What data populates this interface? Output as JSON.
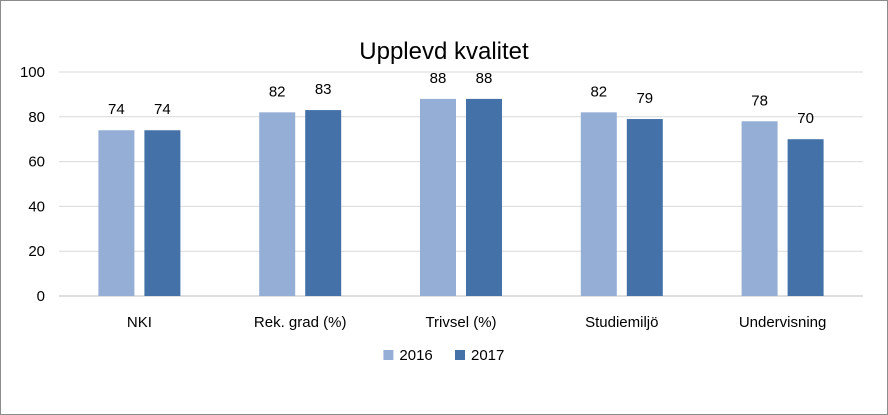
{
  "chart_data": {
    "type": "bar",
    "title": "Upplevd kvalitet",
    "xlabel": "",
    "ylabel": "",
    "categories": [
      "NKI",
      "Rek. grad (%)",
      "Trivsel (%)",
      "Studiemiljö",
      "Undervisning"
    ],
    "series": [
      {
        "name": "2016",
        "values": [
          74,
          82,
          88,
          82,
          78
        ],
        "color": "#95aed5"
      },
      {
        "name": "2017",
        "values": [
          74,
          83,
          88,
          79,
          70
        ],
        "color": "#4472a8"
      }
    ],
    "ylim": [
      0,
      100
    ],
    "yticks": [
      "0",
      "20",
      "40",
      "60",
      "80",
      "100"
    ],
    "grid": true,
    "legend_position": "bottom",
    "data_labels": true
  }
}
